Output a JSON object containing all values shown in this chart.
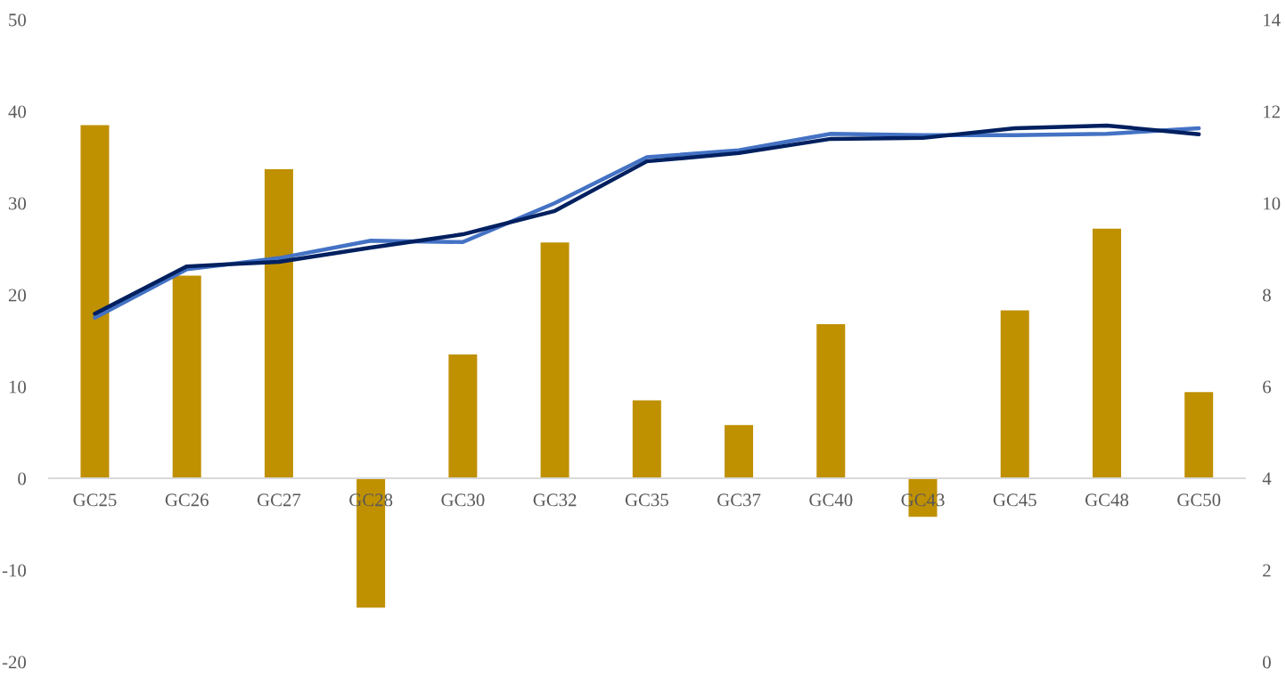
{
  "chart_data": {
    "type": "bar",
    "categories": [
      "GC25",
      "GC26",
      "GC27",
      "GC28",
      "GC30",
      "GC32",
      "GC35",
      "GC37",
      "GC40",
      "GC43",
      "GC45",
      "GC48",
      "GC50"
    ],
    "series": [
      {
        "color": "#bf9000",
        "values": [
          38.5,
          22.1,
          33.7,
          -14.1,
          13.5,
          25.7,
          8.5,
          5.8,
          16.8,
          -4.2,
          18.3,
          27.2,
          9.4
        ]
      },
      {
        "type": "line",
        "axis": "y2",
        "color": "#4472c4",
        "values": [
          7.5,
          8.56,
          8.8,
          9.18,
          9.15,
          10.0,
          11.0,
          11.15,
          11.51,
          11.48,
          11.48,
          11.51,
          11.63
        ]
      },
      {
        "type": "line",
        "axis": "y2",
        "color": "#002060",
        "values": [
          7.59,
          8.62,
          8.72,
          9.03,
          9.32,
          9.83,
          10.91,
          11.09,
          11.4,
          11.42,
          11.63,
          11.69,
          11.5
        ]
      }
    ],
    "ylim": [
      -20,
      50
    ],
    "yticks": [
      {
        "value": -20,
        "label": "-20"
      },
      {
        "value": -10,
        "label": "-10"
      },
      0,
      10,
      20,
      30,
      40,
      50
    ],
    "y2lim": [
      0,
      14
    ],
    "y2ticks": [
      0,
      2,
      4,
      6,
      8,
      10,
      12,
      14
    ],
    "grid": false,
    "legend": false,
    "marker": "none",
    "line_style": "solid"
  }
}
